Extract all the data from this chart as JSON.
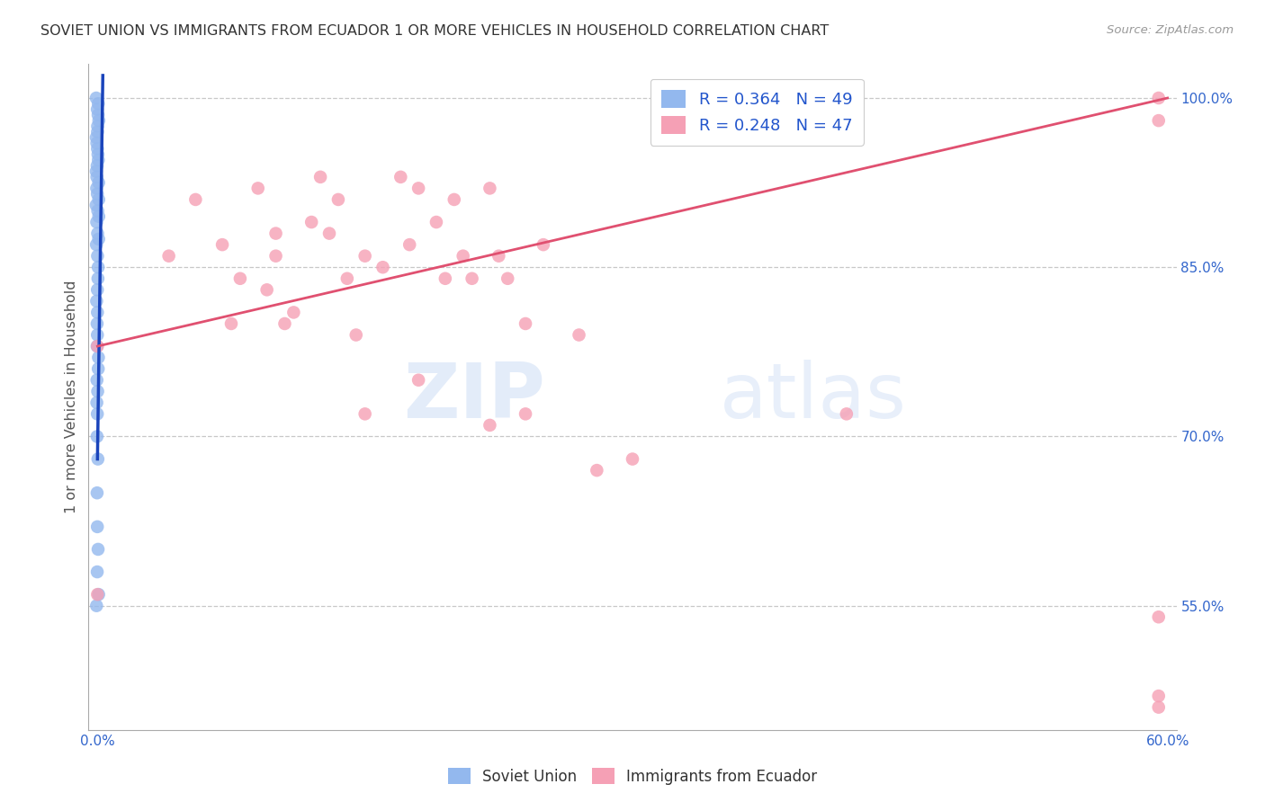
{
  "title": "SOVIET UNION VS IMMIGRANTS FROM ECUADOR 1 OR MORE VEHICLES IN HOUSEHOLD CORRELATION CHART",
  "source": "Source: ZipAtlas.com",
  "ylabel": "1 or more Vehicles in Household",
  "xlim": [
    0.0,
    0.6
  ],
  "ylim": [
    0.44,
    1.03
  ],
  "ytick_positions": [
    0.55,
    0.7,
    0.85,
    1.0
  ],
  "ytick_labels": [
    "55.0%",
    "70.0%",
    "85.0%",
    "100.0%"
  ],
  "blue_color": "#93b8ee",
  "pink_color": "#f5a0b5",
  "trendline_blue_color": "#1a44bb",
  "trendline_pink_color": "#e05070",
  "background_color": "#ffffff",
  "grid_color": "#c8c8c8",
  "soviet_x": [
    0.0,
    0.0,
    0.0,
    0.0,
    0.0,
    0.0,
    0.0,
    0.0,
    0.0,
    0.0,
    0.0,
    0.0,
    0.0,
    0.0,
    0.0,
    0.0,
    0.0,
    0.0,
    0.0,
    0.0,
    0.0,
    0.0,
    0.0,
    0.0,
    0.0,
    0.0,
    0.0,
    0.0,
    0.0,
    0.0,
    0.0,
    0.0,
    0.0,
    0.0,
    0.0,
    0.0,
    0.0,
    0.0,
    0.0,
    0.0,
    0.0,
    0.0,
    0.0,
    0.0,
    0.0,
    0.0,
    0.0,
    0.0,
    0.0
  ],
  "soviet_y": [
    1.0,
    0.995,
    0.99,
    0.985,
    0.98,
    0.975,
    0.97,
    0.965,
    0.96,
    0.955,
    0.95,
    0.945,
    0.94,
    0.935,
    0.93,
    0.925,
    0.92,
    0.915,
    0.91,
    0.905,
    0.9,
    0.895,
    0.89,
    0.88,
    0.875,
    0.87,
    0.86,
    0.85,
    0.84,
    0.83,
    0.82,
    0.81,
    0.8,
    0.79,
    0.78,
    0.77,
    0.76,
    0.75,
    0.74,
    0.73,
    0.72,
    0.7,
    0.68,
    0.65,
    0.62,
    0.6,
    0.58,
    0.56,
    0.55
  ],
  "ecuador_x": [
    0.0,
    0.0,
    0.04,
    0.055,
    0.07,
    0.075,
    0.08,
    0.09,
    0.095,
    0.1,
    0.1,
    0.105,
    0.11,
    0.12,
    0.125,
    0.13,
    0.135,
    0.14,
    0.145,
    0.15,
    0.16,
    0.17,
    0.175,
    0.18,
    0.19,
    0.195,
    0.2,
    0.205,
    0.21,
    0.22,
    0.225,
    0.23,
    0.24,
    0.25,
    0.27,
    0.15,
    0.18,
    0.22,
    0.24,
    0.3,
    0.42,
    0.28,
    0.595,
    0.595,
    0.595,
    0.595,
    0.595
  ],
  "ecuador_y": [
    0.78,
    0.56,
    0.86,
    0.91,
    0.87,
    0.8,
    0.84,
    0.92,
    0.83,
    0.88,
    0.86,
    0.8,
    0.81,
    0.89,
    0.93,
    0.88,
    0.91,
    0.84,
    0.79,
    0.86,
    0.85,
    0.93,
    0.87,
    0.92,
    0.89,
    0.84,
    0.91,
    0.86,
    0.84,
    0.92,
    0.86,
    0.84,
    0.8,
    0.87,
    0.79,
    0.72,
    0.75,
    0.71,
    0.72,
    0.68,
    0.72,
    0.67,
    1.0,
    0.98,
    0.54,
    0.46,
    0.47
  ],
  "blue_trend_x": [
    0.0,
    0.003
  ],
  "blue_trend_y": [
    0.68,
    1.02
  ],
  "pink_trend_x": [
    0.0,
    0.6
  ],
  "pink_trend_y": [
    0.78,
    1.0
  ]
}
